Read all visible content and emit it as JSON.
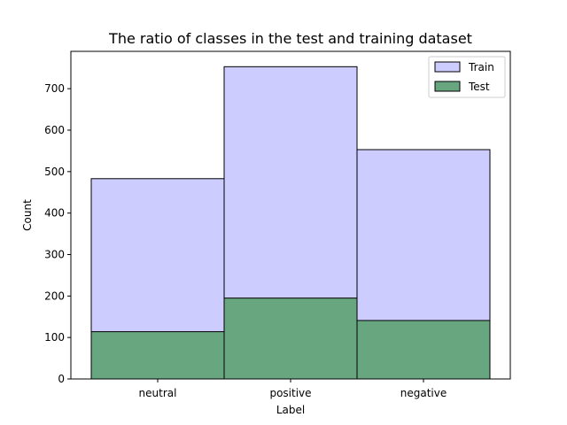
{
  "chart_data": {
    "type": "bar",
    "title": "The ratio of classes in the test and training dataset",
    "xlabel": "Label",
    "ylabel": "Count",
    "categories": [
      "neutral",
      "positive",
      "negative"
    ],
    "series": [
      {
        "name": "Train",
        "values": [
          483,
          753,
          553
        ],
        "color": "#ccccff",
        "edge_color": "#000000"
      },
      {
        "name": "Test",
        "values": [
          114,
          195,
          141
        ],
        "color": "#67a67f",
        "edge_color": "#000000"
      }
    ],
    "ylim": [
      0,
      790
    ],
    "yticks": [
      0,
      100,
      200,
      300,
      400,
      500,
      600,
      700
    ],
    "ytick_labels": [
      "0",
      "100",
      "200",
      "300",
      "400",
      "500",
      "600",
      "700"
    ],
    "grid": false,
    "legend_position": "top-right",
    "overlay": true
  }
}
